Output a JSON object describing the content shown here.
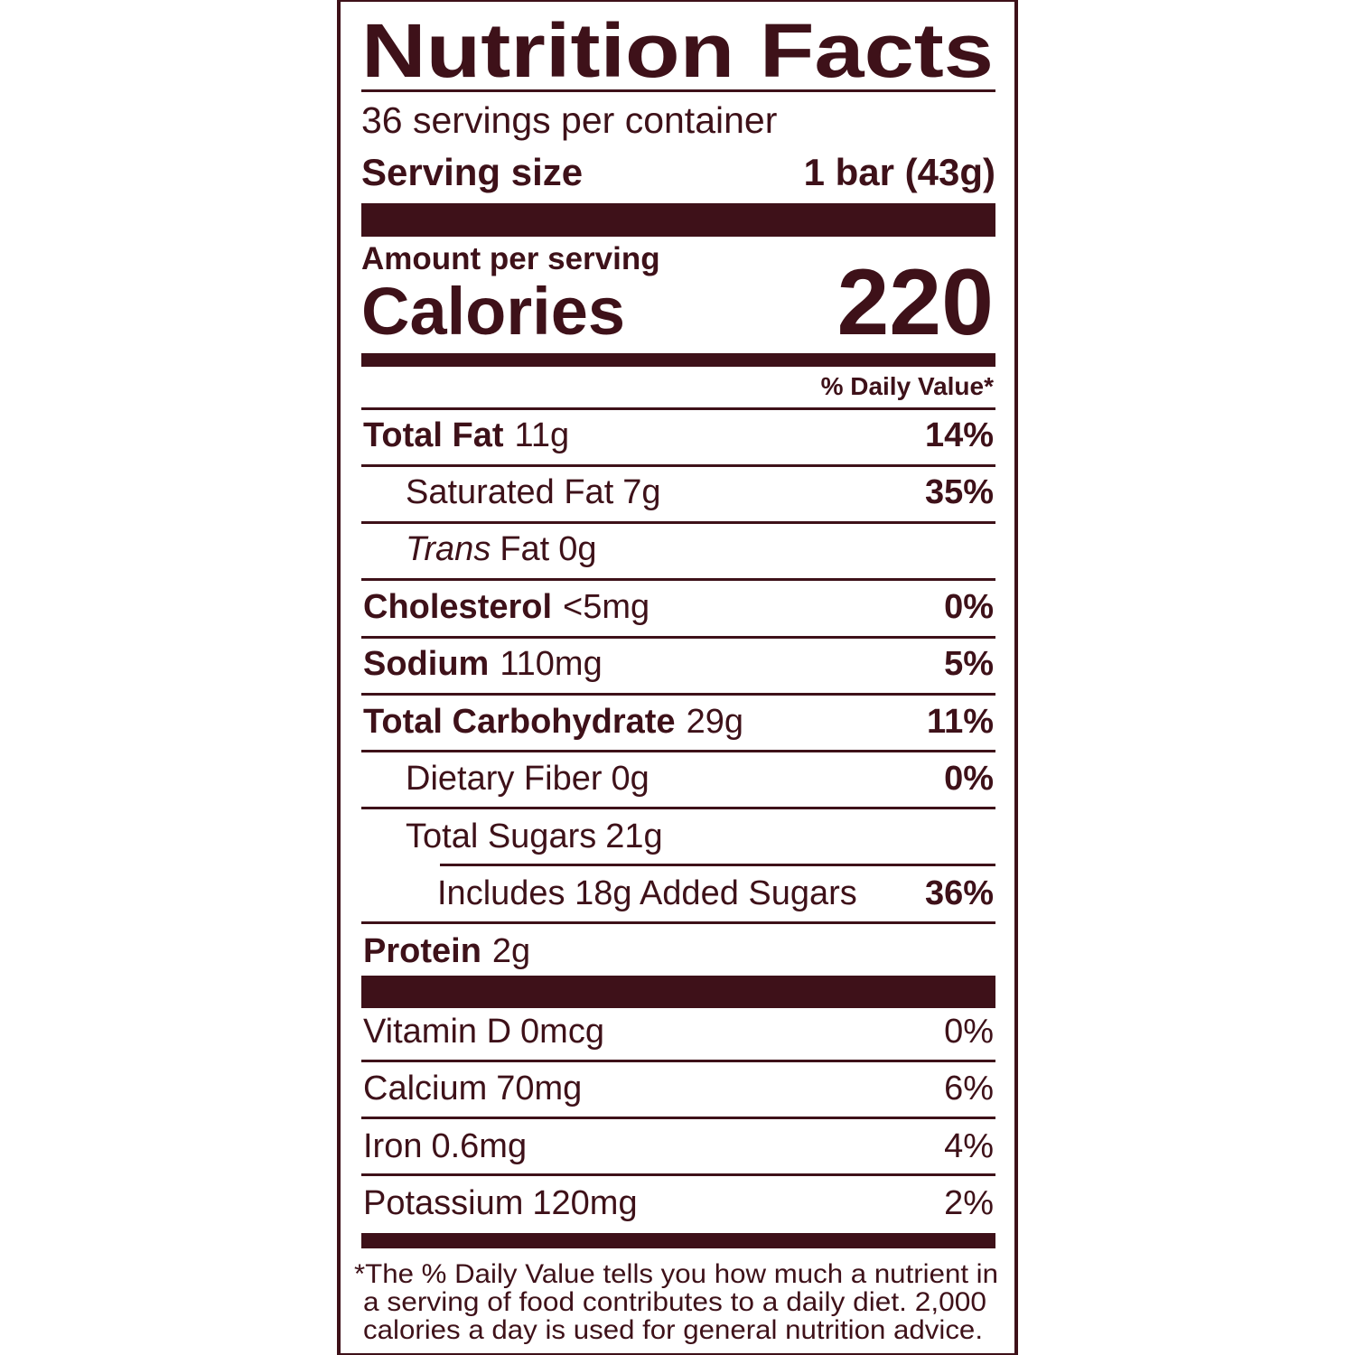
{
  "header": {
    "title": "Nutrition Facts",
    "servings": "36 servings per container",
    "serving_size_label": "Serving size",
    "serving_size_value": "1 bar (43g)"
  },
  "calories": {
    "amount_per_serving": "Amount per serving",
    "label": "Calories",
    "value": "220"
  },
  "daily_value_header": "% Daily Value*",
  "nutrients": [
    {
      "name": "Total Fat",
      "amount": "11g",
      "dv": "14%"
    },
    {
      "name": "Saturated Fat",
      "amount": "7g",
      "dv": "35%"
    },
    {
      "name_italic": "Trans",
      "name": "Fat",
      "amount": "0g"
    },
    {
      "name": "Cholesterol",
      "amount": "<5mg",
      "dv": "0%"
    },
    {
      "name": "Sodium",
      "amount": "110mg",
      "dv": "5%"
    },
    {
      "name": "Total Carbohydrate",
      "amount": "29g",
      "dv": "11%"
    },
    {
      "name": "Dietary Fiber",
      "amount": "0g",
      "dv": "0%"
    },
    {
      "name": "Total Sugars",
      "amount": "21g"
    },
    {
      "name": "Includes 18g Added Sugars",
      "dv": "36%"
    },
    {
      "name": "Protein",
      "amount": "2g"
    }
  ],
  "vitamins": [
    {
      "name": "Vitamin D",
      "amount": "0mcg",
      "dv": "0%"
    },
    {
      "name": "Calcium",
      "amount": "70mg",
      "dv": "6%"
    },
    {
      "name": "Iron",
      "amount": "0.6mg",
      "dv": "4%"
    },
    {
      "name": "Potassium",
      "amount": "120mg",
      "dv": "2%"
    }
  ],
  "footnote": [
    "*The % Daily Value tells you how much a nutrient in",
    "a serving of food contributes to a daily diet. 2,000",
    "calories a day is used for general nutrition advice."
  ]
}
